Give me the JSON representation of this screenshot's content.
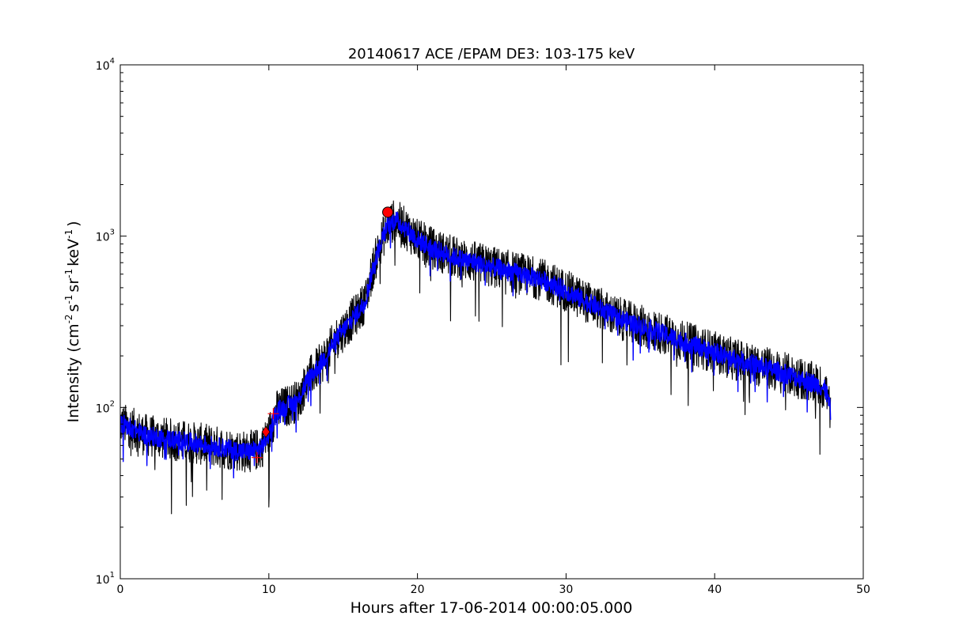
{
  "chart_data": {
    "type": "line",
    "title": "20140617 ACE /EPAM DE3: 103-175 keV",
    "xlabel": "Hours after 17-06-2014 00:00:05.000",
    "ylabel": {
      "prefix": "Intensity (cm",
      "parts": [
        {
          "text": "-2",
          "sup": true
        },
        {
          "text": "s",
          "sup": false
        },
        {
          "text": "-1",
          "sup": true
        },
        {
          "text": "sr",
          "sup": false
        },
        {
          "text": "-1",
          "sup": true
        },
        {
          "text": "keV",
          "sup": false
        },
        {
          "text": "-1",
          "sup": true
        },
        {
          "text": ")",
          "sup": false
        }
      ]
    },
    "xlim": [
      0,
      50
    ],
    "ylim": [
      10,
      10000
    ],
    "yscale": "log",
    "grid": false,
    "x_ticks": [
      {
        "value": 0,
        "label": "0"
      },
      {
        "value": 10,
        "label": "10"
      },
      {
        "value": 20,
        "label": "20"
      },
      {
        "value": 30,
        "label": "30"
      },
      {
        "value": 40,
        "label": "40"
      },
      {
        "value": 50,
        "label": "50"
      }
    ],
    "y_ticks": [
      {
        "value": 10,
        "base": "10",
        "exp": "1"
      },
      {
        "value": 100,
        "base": "10",
        "exp": "2"
      },
      {
        "value": 1000,
        "base": "10",
        "exp": "3"
      },
      {
        "value": 10000,
        "base": "10",
        "exp": "4"
      }
    ],
    "series": [
      {
        "role": "raw",
        "color": "#000000",
        "x": [
          0,
          0.5,
          1,
          1.5,
          2,
          2.5,
          3,
          3.5,
          4,
          4.5,
          5,
          5.5,
          6,
          6.5,
          7,
          7.5,
          8,
          8.5,
          9,
          9.5,
          10,
          10.5,
          11,
          11.5,
          12,
          12.5,
          13,
          13.5,
          14,
          14.5,
          15,
          15.5,
          16,
          16.5,
          17,
          17.5,
          18,
          18.5,
          19,
          19.5,
          20,
          21,
          22,
          23,
          24,
          25,
          26,
          27,
          28,
          29,
          30,
          31,
          32,
          33,
          34,
          35,
          36,
          37,
          38,
          39,
          40,
          41,
          42,
          43,
          44,
          45,
          46,
          47,
          47.5,
          47.8
        ],
        "y": [
          80,
          78,
          74,
          70,
          68,
          67,
          66,
          65,
          64,
          63,
          62,
          61,
          60,
          59,
          58,
          57,
          56,
          55,
          56,
          58,
          70,
          95,
          100,
          105,
          110,
          140,
          160,
          180,
          210,
          250,
          280,
          320,
          360,
          420,
          650,
          900,
          1150,
          1250,
          1150,
          1050,
          950,
          850,
          780,
          730,
          700,
          660,
          630,
          600,
          570,
          530,
          480,
          430,
          390,
          350,
          320,
          300,
          280,
          260,
          240,
          225,
          210,
          195,
          185,
          175,
          165,
          155,
          145,
          135,
          125,
          95
        ],
        "noise": 0.55
      },
      {
        "role": "smoothed",
        "color": "#0000ff",
        "x": [
          0,
          0.5,
          1,
          1.5,
          2,
          2.5,
          3,
          3.5,
          4,
          4.5,
          5,
          5.5,
          6,
          6.5,
          7,
          7.5,
          8,
          8.5,
          9,
          9.5,
          10,
          10.5,
          11,
          11.5,
          12,
          12.5,
          13,
          13.5,
          14,
          14.5,
          15,
          15.5,
          16,
          16.5,
          17,
          17.5,
          18,
          18.5,
          19,
          19.5,
          20,
          21,
          22,
          23,
          24,
          25,
          26,
          27,
          28,
          29,
          30,
          31,
          32,
          33,
          34,
          35,
          36,
          37,
          38,
          39,
          40,
          41,
          42,
          43,
          44,
          45,
          46,
          47,
          47.5,
          47.8
        ],
        "y": [
          80,
          78,
          74,
          70,
          68,
          67,
          66,
          65,
          64,
          63,
          62,
          61,
          60,
          59,
          58,
          57,
          56,
          55,
          56,
          58,
          70,
          95,
          100,
          105,
          110,
          140,
          160,
          180,
          210,
          250,
          280,
          320,
          360,
          420,
          650,
          900,
          1150,
          1250,
          1150,
          1050,
          950,
          850,
          780,
          730,
          700,
          660,
          630,
          600,
          570,
          530,
          480,
          430,
          390,
          350,
          320,
          300,
          280,
          260,
          240,
          225,
          210,
          195,
          185,
          175,
          165,
          155,
          145,
          135,
          125,
          95
        ],
        "noise": 0.25
      }
    ],
    "markers": [
      {
        "shape": "circle",
        "x": 18.0,
        "y": 1380,
        "color": "#ff0000"
      },
      {
        "shape": "diamond",
        "x": 9.8,
        "y": 72,
        "color": "#ff0000"
      },
      {
        "shape": "plus",
        "x": 9.2,
        "y": 51,
        "color": "#ff0000"
      },
      {
        "shape": "plus",
        "x": 10.3,
        "y": 92,
        "color": "#ff0000"
      }
    ]
  }
}
